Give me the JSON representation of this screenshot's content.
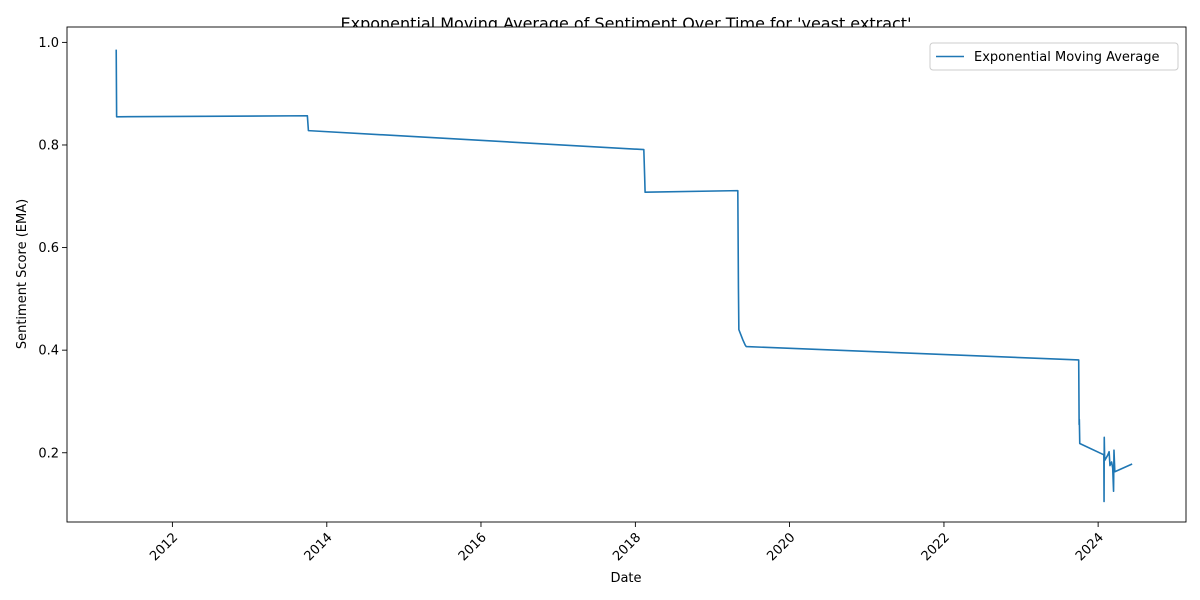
{
  "chart_data": {
    "type": "line",
    "title": "Exponential Moving Average of Sentiment Over Time for 'yeast extract'",
    "xlabel": "Date",
    "ylabel": "Sentiment Score (EMA)",
    "x_ticks": [
      "2012",
      "2014",
      "2016",
      "2018",
      "2020",
      "2022",
      "2024"
    ],
    "y_ticks": [
      "0.2",
      "0.4",
      "0.6",
      "0.8",
      "1.0"
    ],
    "xlim": [
      "2010-08-20",
      "2025-02-20"
    ],
    "ylim": [
      0.065,
      1.03
    ],
    "grid": false,
    "legend_position": "top-right",
    "series": [
      {
        "name": "Exponential Moving Average",
        "color": "#1f77b4",
        "points": [
          [
            "2011-04-10",
            0.986
          ],
          [
            "2011-04-12",
            0.855
          ],
          [
            "2013-10-01",
            0.857
          ],
          [
            "2013-10-06",
            0.828
          ],
          [
            "2018-02-10",
            0.791
          ],
          [
            "2018-02-14",
            0.738
          ],
          [
            "2018-02-16",
            0.708
          ],
          [
            "2019-05-01",
            0.711
          ],
          [
            "2019-05-04",
            0.52
          ],
          [
            "2019-05-06",
            0.44
          ],
          [
            "2019-05-25",
            0.42
          ],
          [
            "2019-06-05",
            0.41
          ],
          [
            "2019-06-10",
            0.407
          ],
          [
            "2023-10-01",
            0.381
          ],
          [
            "2023-10-03",
            0.255
          ],
          [
            "2023-10-04",
            0.265
          ],
          [
            "2023-10-06",
            0.218
          ],
          [
            "2024-01-28",
            0.196
          ],
          [
            "2024-01-29",
            0.105
          ],
          [
            "2024-01-30",
            0.23
          ],
          [
            "2024-02-01",
            0.185
          ],
          [
            "2024-02-15",
            0.195
          ],
          [
            "2024-02-22",
            0.202
          ],
          [
            "2024-02-26",
            0.175
          ],
          [
            "2024-03-05",
            0.182
          ],
          [
            "2024-03-10",
            0.17
          ],
          [
            "2024-03-14",
            0.125
          ],
          [
            "2024-03-16",
            0.205
          ],
          [
            "2024-03-20",
            0.163
          ],
          [
            "2024-06-10",
            0.178
          ]
        ]
      }
    ]
  }
}
